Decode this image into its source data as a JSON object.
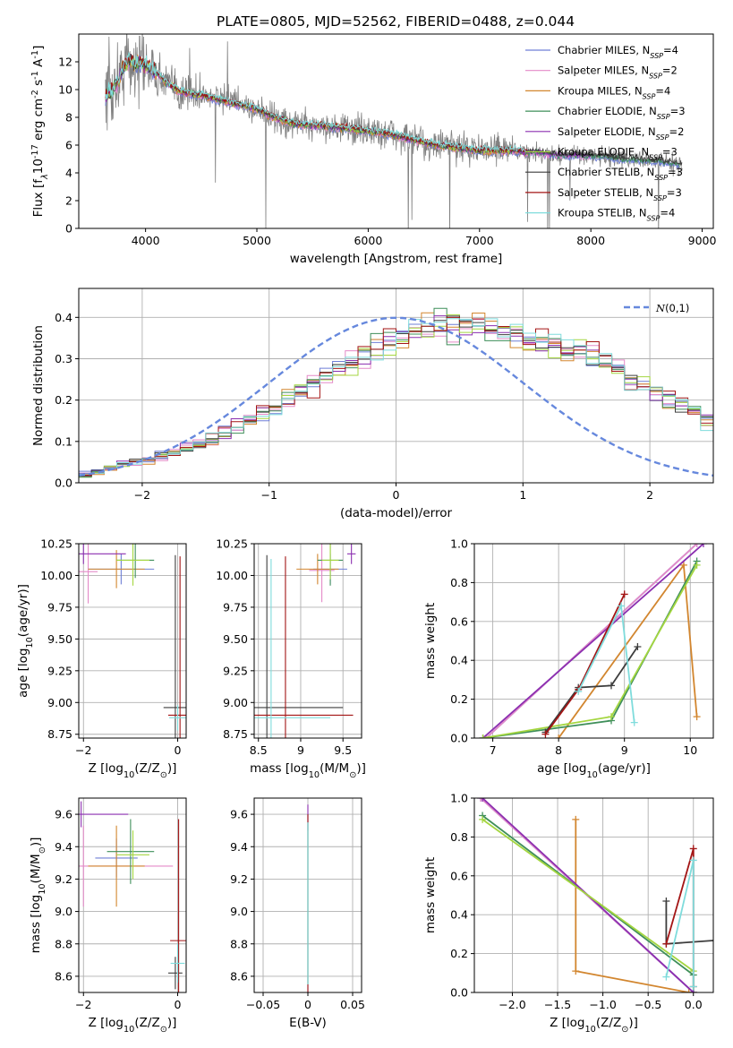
{
  "figure": {
    "title": "PLATE=0805, MJD=52562, FIBERID=0488, z=0.044"
  },
  "colors": {
    "series": [
      "#6f7fd6",
      "#e48ac8",
      "#d2862f",
      "#3f8f5a",
      "#8b2fb0",
      "#a4d640",
      "#3d3d3d",
      "#a31515",
      "#7fdcdc"
    ],
    "normal": "#6688dd",
    "data": "#808080"
  },
  "chart_data": [
    {
      "id": "spectrum",
      "type": "line",
      "title": "PLATE=0805, MJD=52562, FIBERID=0488, z=0.044",
      "xlabel": "wavelength [Angstrom, rest frame]",
      "ylabel": "Flux [f$_\\lambda$10$^{-17}$ erg cm$^{-2}$ s$^{-1}$ A$^{-1}$]",
      "xlim": [
        3400,
        9100
      ],
      "ylim": [
        0,
        14
      ],
      "xticks": [
        4000,
        5000,
        6000,
        7000,
        8000,
        9000
      ],
      "yticks": [
        0,
        2,
        4,
        6,
        8,
        10,
        12
      ],
      "grid": false,
      "legend_position": "upper right",
      "legend": [
        {
          "name": "Chabrier MILES",
          "nssp": "4"
        },
        {
          "name": "Salpeter MILES",
          "nssp": "2"
        },
        {
          "name": "Kroupa MILES",
          "nssp": "4"
        },
        {
          "name": "Chabrier ELODIE",
          "nssp": "3"
        },
        {
          "name": "Salpeter ELODIE",
          "nssp": "2"
        },
        {
          "name": "Kroupa ELODIE",
          "nssp": "3"
        },
        {
          "name": "Chabrier STELIB",
          "nssp": "3"
        },
        {
          "name": "Salpeter STELIB",
          "nssp": "3"
        },
        {
          "name": "Kroupa STELIB",
          "nssp": "4"
        }
      ],
      "model_continuum": {
        "x": [
          3650,
          3700,
          3750,
          3800,
          3850,
          3900,
          3950,
          4000,
          4100,
          4200,
          4300,
          4400,
          4500,
          4600,
          4700,
          4800,
          4900,
          5000,
          5100,
          5200,
          5300,
          5400,
          5500,
          5600,
          5700,
          5800,
          5900,
          6000,
          6100,
          6200,
          6300,
          6400,
          6500,
          6600,
          6700,
          6800,
          6900,
          7000,
          7100,
          7200,
          7300,
          7400,
          7500,
          7600,
          7700,
          7800,
          7900,
          8000,
          8100,
          8200,
          8300,
          8400,
          8500,
          8600,
          8700,
          8800
        ],
        "y": [
          9.6,
          9.9,
          10.6,
          11.6,
          12.1,
          11.8,
          11.9,
          11.8,
          11.2,
          10.4,
          9.9,
          9.7,
          9.6,
          9.4,
          9.2,
          9.0,
          8.8,
          8.6,
          8.2,
          7.9,
          7.6,
          7.5,
          7.4,
          7.4,
          7.3,
          7.2,
          7.1,
          7.0,
          6.9,
          6.8,
          6.6,
          6.4,
          6.2,
          6.0,
          5.9,
          5.8,
          5.7,
          5.6,
          5.6,
          5.6,
          5.6,
          5.5,
          5.5,
          5.4,
          5.3,
          5.3,
          5.3,
          5.2,
          5.2,
          5.1,
          5.0,
          5.0,
          4.9,
          4.9,
          4.8,
          4.6
        ]
      }
    },
    {
      "id": "residuals",
      "type": "line",
      "xlabel": "(data-model)/error",
      "ylabel": "Normed distribution",
      "xlim": [
        -2.5,
        2.5
      ],
      "ylim": [
        0,
        0.47
      ],
      "xticks": [
        -2,
        -1,
        0,
        1,
        2
      ],
      "yticks": [
        0.0,
        0.1,
        0.2,
        0.3,
        0.4
      ],
      "grid": true,
      "legend_position": "upper right",
      "legend": [
        {
          "name": "$\\mathcal{N}(0,1)$"
        }
      ],
      "histogram_bin_width": 0.1,
      "histogram_profile": [
        0.022,
        0.026,
        0.036,
        0.044,
        0.05,
        0.055,
        0.063,
        0.072,
        0.083,
        0.094,
        0.107,
        0.121,
        0.136,
        0.151,
        0.166,
        0.184,
        0.2,
        0.22,
        0.238,
        0.256,
        0.272,
        0.29,
        0.306,
        0.322,
        0.338,
        0.352,
        0.364,
        0.371,
        0.378,
        0.381,
        0.384,
        0.381,
        0.372,
        0.365,
        0.358,
        0.352,
        0.347,
        0.34,
        0.33,
        0.318,
        0.304,
        0.288,
        0.27,
        0.252,
        0.236,
        0.22,
        0.204,
        0.186,
        0.17,
        0.152,
        0.135,
        0.12,
        0.105,
        0.092,
        0.078,
        0.068,
        0.058,
        0.048,
        0.04,
        0.034,
        0.028,
        0.026,
        0.024,
        0.022,
        0.02,
        0.02,
        0.019,
        0.018,
        0.018,
        0.017,
        0.017,
        0.016,
        0.016,
        0.015,
        0.015,
        0.015,
        0.014,
        0.014,
        0.014,
        0.013,
        0.013,
        0.013,
        0.012,
        0.012,
        0.012,
        0.012,
        0.011,
        0.011,
        0.011,
        0.011,
        0.011,
        0.01,
        0.01,
        0.01,
        0.01,
        0.01,
        0.01,
        0.01,
        0.01,
        0.01
      ]
    },
    {
      "id": "age_vs_Z",
      "type": "scatter",
      "xlabel": "Z [log$_{10}$(Z/Z$_\\odot$)]",
      "ylabel": "age  [log$_{10}$(age/yr)]",
      "xlim": [
        -2.1,
        0.18
      ],
      "ylim": [
        8.72,
        10.25
      ],
      "xticks": [
        -2,
        0
      ],
      "yticks": [
        8.75,
        9.0,
        9.25,
        9.5,
        9.75,
        10.0,
        10.25
      ],
      "grid": true,
      "points": [
        {
          "x": -1.2,
          "y": 10.05,
          "xerr": 0.7,
          "yerr": 0.12,
          "color": 0
        },
        {
          "x": -1.9,
          "y": 10.03,
          "xerr": 0.2,
          "yerr": 0.25,
          "color": 1
        },
        {
          "x": -1.3,
          "y": 10.05,
          "xerr": 0.6,
          "yerr": 0.15,
          "color": 2
        },
        {
          "x": -0.9,
          "y": 10.12,
          "xerr": 0.4,
          "yerr": 0.14,
          "color": 3
        },
        {
          "x": -2.0,
          "y": 10.17,
          "xerr": 0.9,
          "yerr": 0.08,
          "color": 4
        },
        {
          "x": -0.95,
          "y": 10.12,
          "xerr": 0.35,
          "yerr": 0.2,
          "color": 5
        },
        {
          "x": -0.05,
          "y": 8.96,
          "xerr": 0.25,
          "yerr": 1.2,
          "color": 6
        },
        {
          "x": 0.05,
          "y": 8.9,
          "xerr": 0.25,
          "yerr": 1.25,
          "color": 7
        },
        {
          "x": 0.0,
          "y": 8.88,
          "xerr": 0.18,
          "yerr": 0.1,
          "color": 8
        }
      ]
    },
    {
      "id": "age_vs_mass",
      "type": "scatter",
      "xlabel": "mass [log$_{10}$(M/M$_\\odot$)]",
      "ylabel": "",
      "xlim": [
        8.45,
        9.72
      ],
      "ylim": [
        8.72,
        10.25
      ],
      "xticks": [
        8.5,
        9.0,
        9.5
      ],
      "yticks": [
        8.75,
        9.0,
        9.25,
        9.5,
        9.75,
        10.0,
        10.25
      ],
      "grid": true,
      "points": [
        {
          "x": 9.35,
          "y": 10.05,
          "xerr": 0.2,
          "yerr": 0.12,
          "color": 0
        },
        {
          "x": 9.25,
          "y": 10.04,
          "xerr": 0.15,
          "yerr": 0.25,
          "color": 1
        },
        {
          "x": 9.2,
          "y": 10.05,
          "xerr": 0.25,
          "yerr": 0.12,
          "color": 2
        },
        {
          "x": 9.35,
          "y": 10.12,
          "xerr": 0.15,
          "yerr": 0.2,
          "color": 3
        },
        {
          "x": 9.6,
          "y": 10.17,
          "xerr": 0.05,
          "yerr": 0.08,
          "color": 4
        },
        {
          "x": 9.35,
          "y": 10.12,
          "xerr": 0.1,
          "yerr": 0.15,
          "color": 5
        },
        {
          "x": 8.6,
          "y": 8.96,
          "xerr": 0.9,
          "yerr": 1.2,
          "color": 6
        },
        {
          "x": 8.82,
          "y": 8.9,
          "xerr": 0.8,
          "yerr": 1.25,
          "color": 7
        },
        {
          "x": 8.65,
          "y": 8.88,
          "xerr": 0.7,
          "yerr": 1.25,
          "color": 8
        }
      ]
    },
    {
      "id": "massweight_vs_age",
      "type": "line",
      "xlabel": "age  [log$_{10}$(age/yr)]",
      "ylabel": "mass weight",
      "xlim": [
        6.72,
        10.35
      ],
      "ylim": [
        0,
        1
      ],
      "xticks": [
        7,
        8,
        9,
        10
      ],
      "yticks": [
        0.0,
        0.2,
        0.4,
        0.6,
        0.8,
        1.0
      ],
      "grid": true,
      "series": [
        {
          "color": 0,
          "x": [
            6.9,
            10.1
          ],
          "y": [
            0.0,
            1.0
          ]
        },
        {
          "color": 1,
          "x": [
            6.9,
            10.1
          ],
          "y": [
            0.0,
            1.0
          ]
        },
        {
          "color": 2,
          "x": [
            8.0,
            9.9,
            10.1
          ],
          "y": [
            0.0,
            0.89,
            0.11
          ]
        },
        {
          "color": 3,
          "x": [
            6.85,
            8.8,
            10.1
          ],
          "y": [
            0.0,
            0.09,
            0.91
          ]
        },
        {
          "color": 4,
          "x": [
            6.85,
            10.2
          ],
          "y": [
            0.0,
            1.0
          ]
        },
        {
          "color": 5,
          "x": [
            6.85,
            8.8,
            10.1
          ],
          "y": [
            0.0,
            0.11,
            0.89
          ]
        },
        {
          "color": 6,
          "x": [
            7.8,
            8.3,
            8.8,
            9.2
          ],
          "y": [
            0.03,
            0.26,
            0.27,
            0.47
          ]
        },
        {
          "color": 7,
          "x": [
            7.8,
            8.3,
            9.0
          ],
          "y": [
            0.02,
            0.25,
            0.74
          ]
        },
        {
          "color": 8,
          "x": [
            8.3,
            8.95,
            9.15
          ],
          "y": [
            0.24,
            0.68,
            0.08
          ]
        }
      ]
    },
    {
      "id": "mass_vs_Z",
      "type": "scatter",
      "xlabel": "Z [log$_{10}$(Z/Z$_\\odot$)]",
      "ylabel": "mass [log$_{10}$(M/M$_\\odot$)]",
      "xlim": [
        -2.1,
        0.18
      ],
      "ylim": [
        8.5,
        9.7
      ],
      "xticks": [
        -2,
        0
      ],
      "yticks": [
        8.6,
        8.8,
        9.0,
        9.2,
        9.4,
        9.6
      ],
      "grid": true,
      "points": [
        {
          "x": -1.3,
          "y": 9.33,
          "xerr": 0.45,
          "yerr": 0.12,
          "color": 0
        },
        {
          "x": -2.0,
          "y": 9.28,
          "xerr": 1.9,
          "yerr": 0.25,
          "color": 1
        },
        {
          "x": -1.3,
          "y": 9.28,
          "xerr": 0.6,
          "yerr": 0.25,
          "color": 2
        },
        {
          "x": -1.0,
          "y": 9.37,
          "xerr": 0.5,
          "yerr": 0.2,
          "color": 3
        },
        {
          "x": -2.05,
          "y": 9.6,
          "xerr": 1.0,
          "yerr": 0.08,
          "color": 4
        },
        {
          "x": -0.95,
          "y": 9.35,
          "xerr": 0.35,
          "yerr": 0.15,
          "color": 5
        },
        {
          "x": -0.05,
          "y": 8.62,
          "xerr": 0.15,
          "yerr": 0.1,
          "color": 6
        },
        {
          "x": 0.02,
          "y": 8.82,
          "xerr": 0.18,
          "yerr": 0.75,
          "color": 7
        },
        {
          "x": 0.0,
          "y": 8.68,
          "xerr": 0.15,
          "yerr": 0.12,
          "color": 8
        }
      ]
    },
    {
      "id": "mass_vs_ebv",
      "type": "scatter",
      "xlabel": "E(B-V)",
      "ylabel": "",
      "xlim": [
        -0.06,
        0.06
      ],
      "ylim": [
        8.5,
        9.7
      ],
      "xticks": [
        -0.05,
        0.0,
        0.05
      ],
      "yticks": [
        8.6,
        8.8,
        9.0,
        9.2,
        9.4,
        9.6
      ],
      "grid": true,
      "points": [
        {
          "x": 0.0,
          "y": 9.58,
          "yerr": 0.08,
          "color": 4
        },
        {
          "x": 0.0,
          "y": 9.05,
          "yerr": 0.5,
          "color": 5
        },
        {
          "x": 0.0,
          "y": 9.05,
          "yerr": 0.55,
          "color": 0
        },
        {
          "x": 0.0,
          "y": 9.05,
          "yerr": 0.5,
          "color": 3
        },
        {
          "x": 0.0,
          "y": 9.05,
          "yerr": 0.55,
          "color": 7
        },
        {
          "x": 0.0,
          "y": 9.05,
          "yerr": 0.5,
          "color": 8
        }
      ]
    },
    {
      "id": "massweight_vs_Z",
      "type": "line",
      "xlabel": "Z [log$_{10}$(Z/Z$_\\odot$)]",
      "ylabel": "mass weight",
      "xlim": [
        -2.42,
        0.22
      ],
      "ylim": [
        0,
        1
      ],
      "xticks": [
        -2.0,
        -1.5,
        -1.0,
        -0.5,
        0.0
      ],
      "yticks": [
        0.0,
        0.2,
        0.4,
        0.6,
        0.8,
        1.0
      ],
      "grid": true,
      "series": [
        {
          "color": 0,
          "x": [
            -2.35,
            0.0
          ],
          "y": [
            1.0,
            0.0
          ]
        },
        {
          "color": 1,
          "x": [
            -2.35,
            0.0
          ],
          "y": [
            1.0,
            0.0
          ]
        },
        {
          "color": 2,
          "x": [
            -1.3,
            -1.3,
            -0.05,
            0.0
          ],
          "y": [
            0.89,
            0.11,
            0.0,
            0.0
          ]
        },
        {
          "color": 3,
          "x": [
            -2.33,
            0.0,
            0.0
          ],
          "y": [
            0.91,
            0.09,
            0.0
          ]
        },
        {
          "color": 4,
          "x": [
            -2.33,
            0.0
          ],
          "y": [
            1.0,
            0.0
          ]
        },
        {
          "color": 5,
          "x": [
            -2.33,
            0.0
          ],
          "y": [
            0.89,
            0.11
          ]
        },
        {
          "color": 6,
          "x": [
            -0.3,
            -0.3,
            0.3
          ],
          "y": [
            0.47,
            0.25,
            0.27
          ]
        },
        {
          "color": 7,
          "x": [
            -0.3,
            0.0,
            0.0
          ],
          "y": [
            0.25,
            0.74,
            0.03
          ]
        },
        {
          "color": 8,
          "x": [
            -0.3,
            0.0,
            0.0
          ],
          "y": [
            0.08,
            0.68,
            0.03
          ]
        }
      ]
    }
  ]
}
